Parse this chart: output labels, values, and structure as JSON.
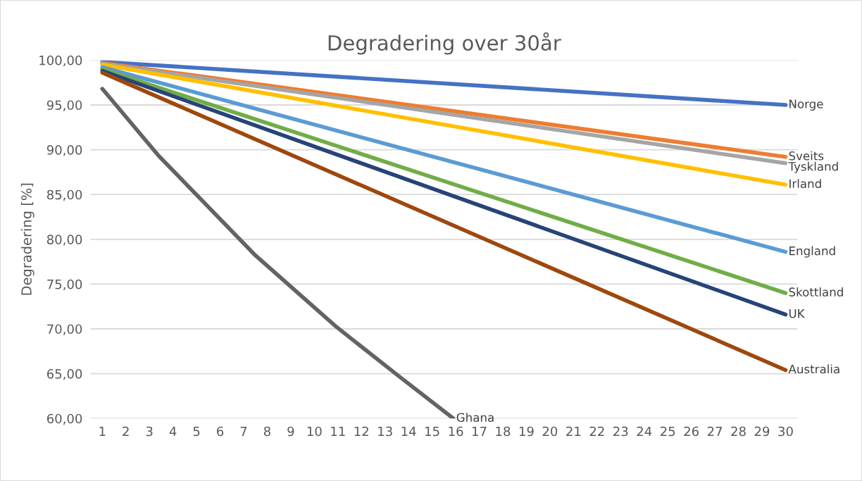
{
  "chart_data": {
    "type": "line",
    "title": "Degradering over 30år",
    "ylabel": "Degradering [%]",
    "xlim": [
      0.5,
      30.5
    ],
    "xticks": [
      1,
      2,
      3,
      4,
      5,
      6,
      7,
      8,
      9,
      10,
      11,
      12,
      13,
      14,
      15,
      16,
      17,
      18,
      19,
      20,
      21,
      22,
      23,
      24,
      25,
      26,
      27,
      28,
      29,
      30
    ],
    "ylim": [
      60,
      100
    ],
    "yticks": [
      {
        "value": 60,
        "label": "60,00"
      },
      {
        "value": 65,
        "label": "65,00"
      },
      {
        "value": 70,
        "label": "70,00"
      },
      {
        "value": 75,
        "label": "75,00"
      },
      {
        "value": 80,
        "label": "80,00"
      },
      {
        "value": 85,
        "label": "85,00"
      },
      {
        "value": 90,
        "label": "90,00"
      },
      {
        "value": 95,
        "label": "95,00"
      },
      {
        "value": 100,
        "label": "100,00"
      }
    ],
    "grid": "y",
    "legend": false,
    "marker": "none",
    "line_style": "solid",
    "series": [
      {
        "name": "Norge",
        "color": "#4472c4",
        "x": [
          1,
          30
        ],
        "values": [
          99.8,
          95.0
        ]
      },
      {
        "name": "Sveits",
        "color": "#ed7d31",
        "x": [
          1,
          30
        ],
        "values": [
          99.7,
          89.2
        ]
      },
      {
        "name": "Tyskland",
        "color": "#a5a5a5",
        "x": [
          1,
          30
        ],
        "values": [
          99.6,
          88.5
        ]
      },
      {
        "name": "Irland",
        "color": "#ffc000",
        "x": [
          1,
          30
        ],
        "values": [
          99.5,
          86.1
        ]
      },
      {
        "name": "England",
        "color": "#5b9bd5",
        "x": [
          1,
          30
        ],
        "values": [
          99.2,
          78.6
        ]
      },
      {
        "name": "Skottland",
        "color": "#70ad47",
        "x": [
          1,
          30
        ],
        "values": [
          99.0,
          74.0
        ]
      },
      {
        "name": "UK",
        "color": "#264478",
        "x": [
          1,
          30
        ],
        "values": [
          98.8,
          71.6
        ]
      },
      {
        "name": "Australia",
        "color": "#9e480e",
        "x": [
          1,
          30
        ],
        "values": [
          98.6,
          65.4
        ]
      },
      {
        "name": "Ghana",
        "color": "#636363",
        "x": [
          1,
          3.4,
          7.5,
          10.9,
          13.5,
          15.9
        ],
        "values": [
          96.8,
          89.3,
          78.2,
          70.3,
          64.9,
          60.0
        ]
      }
    ]
  }
}
